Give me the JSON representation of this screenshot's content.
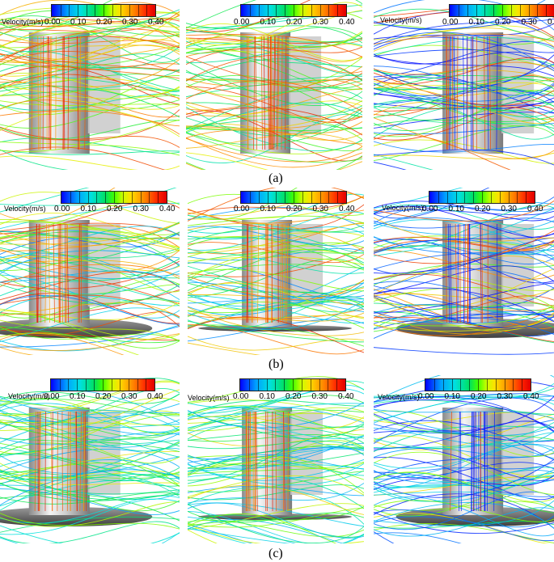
{
  "colorbar": {
    "label": "Velocity(m/s)",
    "ticks": [
      "0.00",
      "0.10",
      "0.20",
      "0.30",
      "0.40"
    ],
    "range": [
      0.0,
      0.4
    ]
  },
  "captions": [
    "(a)",
    "(b)",
    "(c)"
  ],
  "colors": {
    "low": "#0000ff",
    "mid": "#40ff00",
    "high": "#e00000",
    "cylinder": "#bdbdbd",
    "plate": "#6e6e6e"
  }
}
